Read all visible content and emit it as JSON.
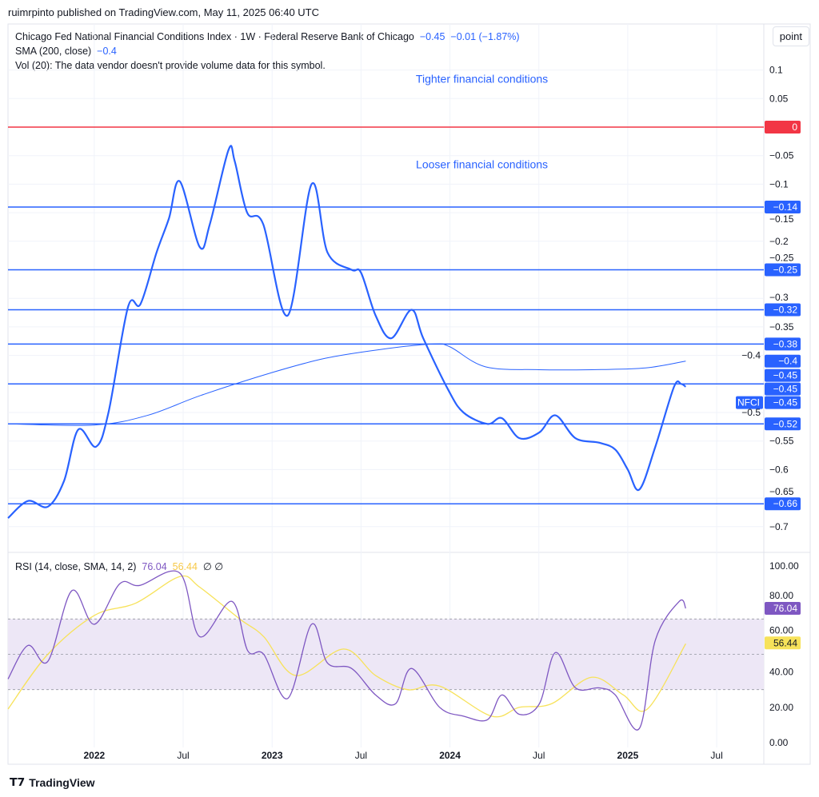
{
  "header": {
    "published": "ruimrpinto published on TradingView.com, May 11, 2025 06:40 UTC",
    "point_button": "point"
  },
  "legend": {
    "title": "Chicago Fed National Financial Conditions Index · 1W · Federal Reserve Bank of Chicago",
    "last": "−0.45",
    "change": "−0.01 (−1.87%)",
    "sma_label": "SMA (200, close)",
    "sma_value": "−0.4",
    "vol": "Vol (20): The data vendor doesn't provide volume data for this symbol."
  },
  "rsi_legend": {
    "label": "RSI (14, close, SMA, 14, 2)",
    "rsi": "76.04",
    "ma": "56.44",
    "extra": "∅ ∅"
  },
  "footer": {
    "logo": "TradingView"
  },
  "colors": {
    "nfci": "#2962ff",
    "sma": "#2962ff",
    "zero": "#f23645",
    "rsi": "#7e57c2",
    "rsi_ma": "#f7e25a",
    "band": "#ede7f6"
  },
  "chart_data": [
    {
      "type": "line",
      "title": "Chicago Fed National Financial Conditions Index",
      "ylim": [
        -0.75,
        0.14
      ],
      "yticks": [
        0.1,
        0.05,
        -0.05,
        -0.1,
        -0.15,
        -0.2,
        -0.25,
        -0.3,
        -0.35,
        -0.4,
        -0.5,
        -0.55,
        -0.6,
        -0.65,
        -0.7
      ],
      "ytick_labels": [
        "0.1",
        "0.05",
        "−0.05",
        "−0.1",
        "−0.15",
        "−0.2",
        "−0.25",
        "−0.3",
        "−0.35",
        "−0.4",
        "−0.5",
        "−0.55",
        "−0.6",
        "−0.65",
        "−0.7"
      ],
      "xlim": [
        2021.515,
        2025.765
      ],
      "xticks": [
        {
          "t": 2022,
          "label": "2022",
          "bold": true
        },
        {
          "t": 2022.5,
          "label": "Jul"
        },
        {
          "t": 2023,
          "label": "2023",
          "bold": true
        },
        {
          "t": 2023.5,
          "label": "Jul"
        },
        {
          "t": 2024,
          "label": "2024",
          "bold": true
        },
        {
          "t": 2024.5,
          "label": "Jul"
        },
        {
          "t": 2025,
          "label": "2025",
          "bold": true
        },
        {
          "t": 2025.5,
          "label": "Jul"
        }
      ],
      "annotations": [
        {
          "text": "Tighter financial conditions",
          "t": 2024.0,
          "v": 0.085
        },
        {
          "text": "Looser financial conditions",
          "t": 2024.0,
          "v": -0.065
        }
      ],
      "hlines": [
        {
          "v": 0,
          "label": "0",
          "color": "#f23645"
        },
        {
          "v": -0.14,
          "label": "−0.14"
        },
        {
          "v": -0.25,
          "label": "−0.25"
        },
        {
          "v": -0.32,
          "label": "−0.32"
        },
        {
          "v": -0.38,
          "label": "−0.38"
        },
        {
          "v": -0.45,
          "label": "−0.45"
        },
        {
          "v": -0.52,
          "label": "−0.52"
        },
        {
          "v": -0.66,
          "label": "−0.66"
        }
      ],
      "price_tags": [
        {
          "v": -0.41,
          "label": "−0.4"
        },
        {
          "v": -0.435,
          "label": "−0.45"
        },
        {
          "v": -0.45,
          "label": "−0.45",
          "name": "NFCI"
        }
      ],
      "series": [
        {
          "name": "NFCI",
          "points": [
            [
              2021.515,
              -0.685
            ],
            [
              2021.627,
              -0.655
            ],
            [
              2021.739,
              -0.665
            ],
            [
              2021.83,
              -0.62
            ],
            [
              2021.91,
              -0.53
            ],
            [
              2022.01,
              -0.56
            ],
            [
              2022.08,
              -0.5
            ],
            [
              2022.19,
              -0.315
            ],
            [
              2022.26,
              -0.31
            ],
            [
              2022.35,
              -0.22
            ],
            [
              2022.42,
              -0.16
            ],
            [
              2022.481,
              -0.095
            ],
            [
              2022.593,
              -0.21
            ],
            [
              2022.65,
              -0.17
            ],
            [
              2022.755,
              -0.04
            ],
            [
              2022.79,
              -0.06
            ],
            [
              2022.86,
              -0.15
            ],
            [
              2022.95,
              -0.17
            ],
            [
              2023.088,
              -0.33
            ],
            [
              2023.222,
              -0.1
            ],
            [
              2023.312,
              -0.22
            ],
            [
              2023.447,
              -0.25
            ],
            [
              2023.5,
              -0.255
            ],
            [
              2023.582,
              -0.33
            ],
            [
              2023.67,
              -0.37
            ],
            [
              2023.784,
              -0.32
            ],
            [
              2023.85,
              -0.37
            ],
            [
              2023.99,
              -0.46
            ],
            [
              2024.076,
              -0.5
            ],
            [
              2024.211,
              -0.52
            ],
            [
              2024.292,
              -0.51
            ],
            [
              2024.391,
              -0.545
            ],
            [
              2024.503,
              -0.535
            ],
            [
              2024.593,
              -0.505
            ],
            [
              2024.706,
              -0.545
            ],
            [
              2024.84,
              -0.553
            ],
            [
              2024.93,
              -0.565
            ],
            [
              2025.0,
              -0.6
            ],
            [
              2025.065,
              -0.635
            ],
            [
              2025.155,
              -0.56
            ],
            [
              2025.26,
              -0.455
            ],
            [
              2025.3,
              -0.45
            ],
            [
              2025.326,
              -0.455
            ]
          ]
        },
        {
          "name": "SMA (200, close)",
          "points": [
            [
              2021.515,
              -0.52
            ],
            [
              2022.0,
              -0.522
            ],
            [
              2022.3,
              -0.505
            ],
            [
              2022.6,
              -0.47
            ],
            [
              2023.0,
              -0.43
            ],
            [
              2023.3,
              -0.405
            ],
            [
              2023.6,
              -0.39
            ],
            [
              2023.9,
              -0.38
            ],
            [
              2024.0,
              -0.385
            ],
            [
              2024.2,
              -0.42
            ],
            [
              2024.5,
              -0.425
            ],
            [
              2024.8,
              -0.425
            ],
            [
              2025.1,
              -0.422
            ],
            [
              2025.326,
              -0.41
            ]
          ]
        }
      ]
    },
    {
      "type": "line",
      "title": "RSI (14, close, SMA, 14, 2)",
      "ylim": [
        0,
        100
      ],
      "yticks": [
        0,
        20,
        40,
        60,
        80,
        100
      ],
      "ytick_labels": [
        "0.00",
        "20.00",
        "40.00",
        "60.00",
        "80.00",
        "100.00"
      ],
      "band": [
        30,
        70
      ],
      "midline": 50,
      "tags": [
        {
          "v": 76.04,
          "label": "76.04",
          "color": "#7e57c2"
        },
        {
          "v": 56.44,
          "label": "56.44",
          "color": "#f7e25a"
        }
      ],
      "series": [
        {
          "name": "RSI",
          "points": [
            [
              2021.515,
              36
            ],
            [
              2021.627,
              55
            ],
            [
              2021.739,
              46
            ],
            [
              2021.874,
              86
            ],
            [
              2022.0,
              67
            ],
            [
              2022.144,
              90
            ],
            [
              2022.256,
              89
            ],
            [
              2022.481,
              96
            ],
            [
              2022.593,
              60
            ],
            [
              2022.773,
              80
            ],
            [
              2022.863,
              52
            ],
            [
              2022.953,
              50
            ],
            [
              2023.088,
              25
            ],
            [
              2023.222,
              67
            ],
            [
              2023.312,
              45
            ],
            [
              2023.447,
              42
            ],
            [
              2023.582,
              27
            ],
            [
              2023.694,
              22
            ],
            [
              2023.784,
              42
            ],
            [
              2023.942,
              20
            ],
            [
              2024.076,
              15
            ],
            [
              2024.211,
              13
            ],
            [
              2024.292,
              27
            ],
            [
              2024.391,
              16
            ],
            [
              2024.503,
              22
            ],
            [
              2024.593,
              51
            ],
            [
              2024.706,
              31
            ],
            [
              2024.84,
              31
            ],
            [
              2024.93,
              27
            ],
            [
              2025.065,
              8
            ],
            [
              2025.155,
              58
            ],
            [
              2025.29,
              80
            ],
            [
              2025.326,
              76
            ]
          ]
        },
        {
          "name": "RSI-based MA",
          "points": [
            [
              2021.515,
              19
            ],
            [
              2021.739,
              50
            ],
            [
              2022.0,
              72
            ],
            [
              2022.234,
              79
            ],
            [
              2022.481,
              94
            ],
            [
              2022.593,
              88
            ],
            [
              2022.818,
              70
            ],
            [
              2022.953,
              60
            ],
            [
              2023.133,
              38
            ],
            [
              2023.402,
              53
            ],
            [
              2023.582,
              38
            ],
            [
              2023.762,
              30
            ],
            [
              2023.942,
              32
            ],
            [
              2024.234,
              15
            ],
            [
              2024.391,
              20
            ],
            [
              2024.571,
              22
            ],
            [
              2024.796,
              37
            ],
            [
              2024.975,
              27
            ],
            [
              2025.11,
              19
            ],
            [
              2025.326,
              56
            ]
          ]
        }
      ]
    }
  ]
}
